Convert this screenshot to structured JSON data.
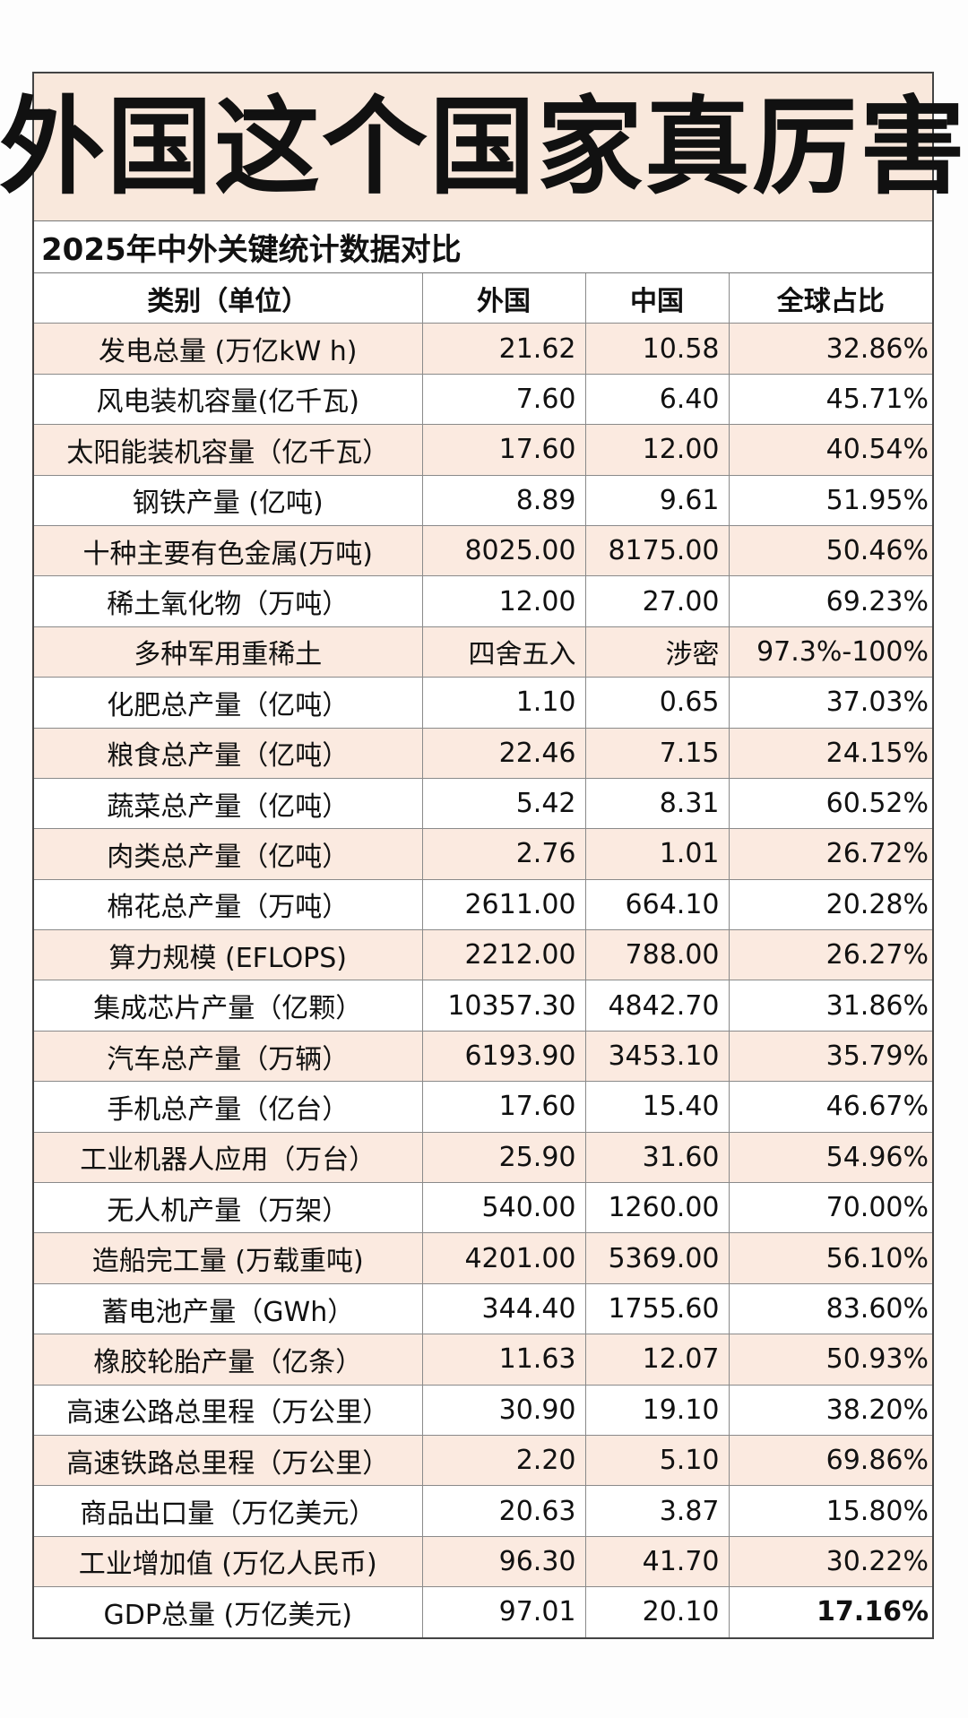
{
  "title": "外国这个国家真厉害",
  "subtitle": "2025年中外关键统计数据对比",
  "headers": [
    "类别（单位）",
    "外国",
    "中国",
    "全球占比"
  ],
  "rows": [
    {
      "category": "发电总量 (万亿kW h)",
      "foreign": "21.62",
      "china": "10.58",
      "share": "32.86%"
    },
    {
      "category": "风电装机容量(亿千瓦)",
      "foreign": "7.60",
      "china": "6.40",
      "share": "45.71%"
    },
    {
      "category": "太阳能装机容量（亿千瓦）",
      "foreign": "17.60",
      "china": "12.00",
      "share": "40.54%"
    },
    {
      "category": "钢铁产量 (亿吨)",
      "foreign": "8.89",
      "china": "9.61",
      "share": "51.95%"
    },
    {
      "category": "十种主要有色金属(万吨)",
      "foreign": "8025.00",
      "china": "8175.00",
      "share": "50.46%"
    },
    {
      "category": "稀土氧化物（万吨）",
      "foreign": "12.00",
      "china": "27.00",
      "share": "69.23%"
    },
    {
      "category": "多种军用重稀土",
      "foreign": "四舍五入",
      "china": "涉密",
      "share": "97.3%-100%"
    },
    {
      "category": "化肥总产量（亿吨）",
      "foreign": "1.10",
      "china": "0.65",
      "share": "37.03%"
    },
    {
      "category": "粮食总产量（亿吨）",
      "foreign": "22.46",
      "china": "7.15",
      "share": "24.15%"
    },
    {
      "category": "蔬菜总产量（亿吨）",
      "foreign": "5.42",
      "china": "8.31",
      "share": "60.52%"
    },
    {
      "category": "肉类总产量（亿吨）",
      "foreign": "2.76",
      "china": "1.01",
      "share": "26.72%"
    },
    {
      "category": "棉花总产量（万吨）",
      "foreign": "2611.00",
      "china": "664.10",
      "share": "20.28%"
    },
    {
      "category": "算力规模 (EFLOPS)",
      "foreign": "2212.00",
      "china": "788.00",
      "share": "26.27%"
    },
    {
      "category": "集成芯片产量（亿颗）",
      "foreign": "10357.30",
      "china": "4842.70",
      "share": "31.86%"
    },
    {
      "category": "汽车总产量（万辆）",
      "foreign": "6193.90",
      "china": "3453.10",
      "share": "35.79%"
    },
    {
      "category": "手机总产量（亿台）",
      "foreign": "17.60",
      "china": "15.40",
      "share": "46.67%"
    },
    {
      "category": "工业机器人应用（万台）",
      "foreign": "25.90",
      "china": "31.60",
      "share": "54.96%"
    },
    {
      "category": "无人机产量（万架）",
      "foreign": "540.00",
      "china": "1260.00",
      "share": "70.00%"
    },
    {
      "category": "造船完工量 (万载重吨)",
      "foreign": "4201.00",
      "china": "5369.00",
      "share": "56.10%"
    },
    {
      "category": "蓄电池产量（GWh）",
      "foreign": "344.40",
      "china": "1755.60",
      "share": "83.60%"
    },
    {
      "category": "橡胶轮胎产量（亿条）",
      "foreign": "11.63",
      "china": "12.07",
      "share": "50.93%"
    },
    {
      "category": "高速公路总里程（万公里）",
      "foreign": "30.90",
      "china": "19.10",
      "share": "38.20%"
    },
    {
      "category": "高速铁路总里程（万公里）",
      "foreign": "2.20",
      "china": "5.10",
      "share": "69.86%"
    },
    {
      "category": "商品出口量（万亿美元）",
      "foreign": "20.63",
      "china": "3.87",
      "share": "15.80%"
    },
    {
      "category": "工业增加值 (万亿人民币)",
      "foreign": "96.30",
      "china": "41.70",
      "share": "30.22%"
    },
    {
      "category": "GDP总量 (万亿美元)",
      "foreign": "97.01",
      "china": "20.10",
      "share": "17.16%"
    }
  ],
  "colors": {
    "row_shade": "#fbeae0",
    "title_bg": "#f9e8dc",
    "border": "#8a8a8a"
  }
}
